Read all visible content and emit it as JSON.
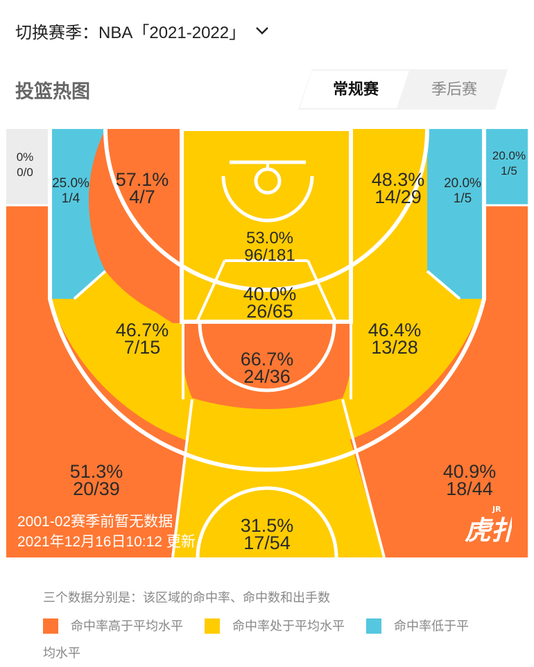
{
  "header": {
    "season_label": "切换赛季：NBA「2021-2022」",
    "title": "投篮热图"
  },
  "tabs": [
    {
      "label": "常规赛",
      "active": true
    },
    {
      "label": "季后赛",
      "active": false
    }
  ],
  "colors": {
    "above_avg": "#ff7733",
    "avg": "#ffcc00",
    "below_avg": "#55c8df",
    "no_data": "#ececec"
  },
  "zones": {
    "left_corner_three": {
      "pct": "0%",
      "made_att": "0/0",
      "level": "no_data"
    },
    "left_wing_three_deep": {
      "pct": "25.0%",
      "made_att": "1/4",
      "level": "below_avg"
    },
    "left_baseline_mid": {
      "pct": "57.1%",
      "made_att": "4/7",
      "level": "above_avg"
    },
    "paint": {
      "pct": "53.0%",
      "made_att": "96/181",
      "level": "avg"
    },
    "right_baseline_mid": {
      "pct": "48.3%",
      "made_att": "14/29",
      "level": "avg"
    },
    "right_wing_three_deep": {
      "pct": "20.0%",
      "made_att": "1/5",
      "level": "below_avg"
    },
    "right_corner_three": {
      "pct": "20.0%",
      "made_att": "1/5",
      "level": "below_avg"
    },
    "lane_top": {
      "pct": "40.0%",
      "made_att": "26/65",
      "level": "avg"
    },
    "left_elbow_mid": {
      "pct": "46.7%",
      "made_att": "7/15",
      "level": "avg"
    },
    "right_elbow_mid": {
      "pct": "46.4%",
      "made_att": "13/28",
      "level": "avg"
    },
    "free_throw_mid": {
      "pct": "66.7%",
      "made_att": "24/36",
      "level": "above_avg"
    },
    "left_three": {
      "pct": "51.3%",
      "made_att": "20/39",
      "level": "above_avg"
    },
    "right_three": {
      "pct": "40.9%",
      "made_att": "18/44",
      "level": "above_avg"
    },
    "top_three": {
      "pct": "31.5%",
      "made_att": "17/54",
      "level": "avg"
    }
  },
  "court_note": {
    "line1": "2001-02赛季前暂无数据",
    "line2": "2021年12月16日10:12 更新"
  },
  "brand": {
    "name": "虎扑",
    "small": "JR"
  },
  "legend": {
    "caption": "三个数据分别是：该区域的命中率、命中数和出手数",
    "items": [
      {
        "label": "命中率高于平均水平",
        "color": "#ff7733"
      },
      {
        "label": "命中率处于平均水平",
        "color": "#ffcc00"
      },
      {
        "label": "命中率低于平",
        "color": "#55c8df"
      }
    ],
    "wrap_text": "均水平"
  }
}
